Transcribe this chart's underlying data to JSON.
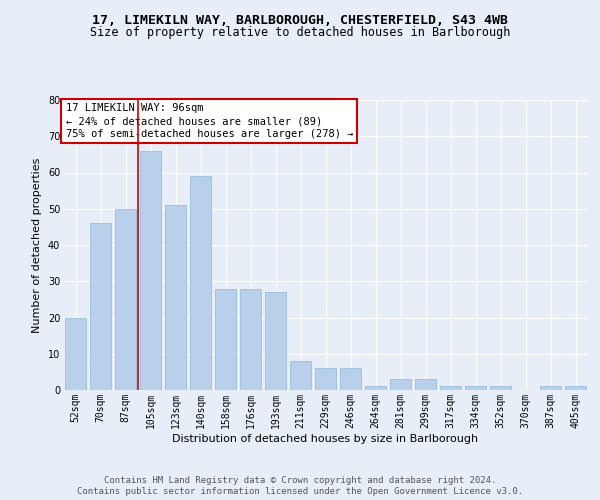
{
  "title_line1": "17, LIMEKILN WAY, BARLBOROUGH, CHESTERFIELD, S43 4WB",
  "title_line2": "Size of property relative to detached houses in Barlborough",
  "xlabel": "Distribution of detached houses by size in Barlborough",
  "ylabel": "Number of detached properties",
  "categories": [
    "52sqm",
    "70sqm",
    "87sqm",
    "105sqm",
    "123sqm",
    "140sqm",
    "158sqm",
    "176sqm",
    "193sqm",
    "211sqm",
    "229sqm",
    "246sqm",
    "264sqm",
    "281sqm",
    "299sqm",
    "317sqm",
    "334sqm",
    "352sqm",
    "370sqm",
    "387sqm",
    "405sqm"
  ],
  "values": [
    20,
    46,
    50,
    66,
    51,
    59,
    28,
    28,
    27,
    8,
    6,
    6,
    1,
    3,
    3,
    1,
    1,
    1,
    0,
    1,
    1
  ],
  "bar_color": "#b8d0ea",
  "bar_edge_color": "#8fb8d8",
  "vline_color": "#cc0000",
  "vline_x_index": 2.5,
  "annotation_text": "17 LIMEKILN WAY: 96sqm\n← 24% of detached houses are smaller (89)\n75% of semi-detached houses are larger (278) →",
  "annotation_box_facecolor": "#ffffff",
  "annotation_box_edgecolor": "#cc0000",
  "ylim": [
    0,
    80
  ],
  "yticks": [
    0,
    10,
    20,
    30,
    40,
    50,
    60,
    70,
    80
  ],
  "background_color": "#e8eef8",
  "plot_bg_color": "#e8eef8",
  "footer_line1": "Contains HM Land Registry data © Crown copyright and database right 2024.",
  "footer_line2": "Contains public sector information licensed under the Open Government Licence v3.0.",
  "title_fontsize": 9.5,
  "subtitle_fontsize": 8.5,
  "axis_label_fontsize": 8,
  "tick_fontsize": 7,
  "annotation_fontsize": 7.5,
  "footer_fontsize": 6.5,
  "ylabel_fontsize": 8
}
